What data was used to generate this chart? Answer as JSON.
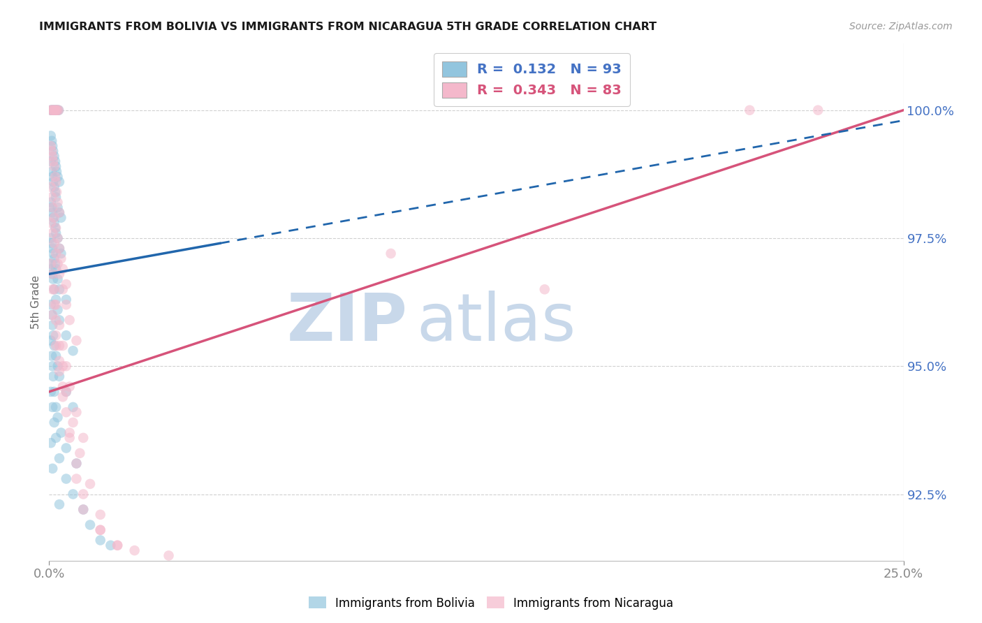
{
  "title": "IMMIGRANTS FROM BOLIVIA VS IMMIGRANTS FROM NICARAGUA 5TH GRADE CORRELATION CHART",
  "source": "Source: ZipAtlas.com",
  "ylabel": "5th Grade",
  "ytick_values": [
    100.0,
    97.5,
    95.0,
    92.5
  ],
  "ylim": [
    91.2,
    101.3
  ],
  "xlim": [
    0.0,
    25.0
  ],
  "bolivia_color": "#92c5de",
  "nicaragua_color": "#f4b8cb",
  "bolivia_line_color": "#2166ac",
  "nicaragua_line_color": "#d6537a",
  "bolivia_line": {
    "x0": 0.0,
    "y0": 96.8,
    "x1": 25.0,
    "y1": 99.8
  },
  "nicaragua_line": {
    "x0": 0.0,
    "y0": 94.5,
    "x1": 25.0,
    "y1": 100.0
  },
  "bolivia_solid_end": 5.0,
  "background_color": "#ffffff",
  "grid_color": "#d0d0d0",
  "watermark_zip": "ZIP",
  "watermark_atlas": "atlas",
  "watermark_zip_color": "#c8d8ea",
  "watermark_atlas_color": "#c8d8ea",
  "axis_label_color": "#4472c4",
  "legend_r_blue": "#4472c4",
  "legend_r_pink": "#d6537a",
  "bolivia_x": [
    0.05,
    0.08,
    0.1,
    0.12,
    0.15,
    0.18,
    0.2,
    0.22,
    0.25,
    0.28,
    0.05,
    0.08,
    0.1,
    0.12,
    0.15,
    0.18,
    0.2,
    0.22,
    0.25,
    0.3,
    0.05,
    0.08,
    0.1,
    0.12,
    0.15,
    0.18,
    0.2,
    0.25,
    0.3,
    0.35,
    0.05,
    0.08,
    0.1,
    0.12,
    0.15,
    0.18,
    0.2,
    0.25,
    0.3,
    0.35,
    0.05,
    0.08,
    0.1,
    0.12,
    0.15,
    0.18,
    0.2,
    0.25,
    0.3,
    0.5,
    0.05,
    0.08,
    0.1,
    0.12,
    0.15,
    0.2,
    0.25,
    0.3,
    0.5,
    0.7,
    0.05,
    0.08,
    0.1,
    0.12,
    0.15,
    0.2,
    0.25,
    0.3,
    0.5,
    0.7,
    0.05,
    0.08,
    0.1,
    0.12,
    0.15,
    0.2,
    0.25,
    0.35,
    0.5,
    0.8,
    0.05,
    0.1,
    0.15,
    0.2,
    0.3,
    0.5,
    0.7,
    1.0,
    1.2,
    1.5,
    0.05,
    0.1,
    0.3,
    1.8
  ],
  "bolivia_y": [
    100.0,
    100.0,
    100.0,
    100.0,
    100.0,
    100.0,
    100.0,
    100.0,
    100.0,
    100.0,
    99.5,
    99.4,
    99.3,
    99.2,
    99.1,
    99.0,
    98.9,
    98.8,
    98.7,
    98.6,
    99.0,
    98.8,
    98.7,
    98.6,
    98.5,
    98.4,
    98.3,
    98.1,
    98.0,
    97.9,
    98.2,
    98.1,
    98.0,
    97.9,
    97.8,
    97.7,
    97.6,
    97.5,
    97.3,
    97.2,
    97.5,
    97.4,
    97.3,
    97.2,
    97.1,
    97.0,
    96.9,
    96.7,
    96.5,
    96.3,
    97.0,
    96.9,
    96.8,
    96.7,
    96.5,
    96.3,
    96.1,
    95.9,
    95.6,
    95.3,
    96.2,
    96.0,
    95.8,
    95.6,
    95.4,
    95.2,
    95.0,
    94.8,
    94.5,
    94.2,
    95.5,
    95.2,
    95.0,
    94.8,
    94.5,
    94.2,
    94.0,
    93.7,
    93.4,
    93.1,
    94.5,
    94.2,
    93.9,
    93.6,
    93.2,
    92.8,
    92.5,
    92.2,
    91.9,
    91.6,
    93.5,
    93.0,
    92.3,
    91.5
  ],
  "nicaragua_x": [
    0.05,
    0.08,
    0.1,
    0.12,
    0.15,
    0.18,
    0.2,
    0.22,
    0.25,
    0.28,
    0.05,
    0.08,
    0.1,
    0.12,
    0.15,
    0.18,
    0.2,
    0.22,
    0.25,
    0.3,
    0.05,
    0.08,
    0.1,
    0.15,
    0.2,
    0.25,
    0.3,
    0.35,
    0.4,
    0.5,
    0.05,
    0.1,
    0.15,
    0.2,
    0.25,
    0.3,
    0.4,
    0.5,
    0.6,
    0.8,
    0.05,
    0.1,
    0.15,
    0.2,
    0.3,
    0.4,
    0.5,
    0.6,
    0.8,
    1.0,
    0.1,
    0.15,
    0.2,
    0.3,
    0.4,
    0.5,
    0.7,
    0.9,
    1.2,
    1.5,
    0.1,
    0.2,
    0.3,
    0.4,
    0.5,
    0.6,
    0.8,
    1.0,
    1.5,
    2.0,
    0.2,
    0.3,
    0.4,
    0.6,
    0.8,
    1.0,
    1.5,
    2.0,
    2.5,
    3.5,
    20.5,
    22.5,
    14.5,
    10.0
  ],
  "nicaragua_y": [
    100.0,
    100.0,
    100.0,
    100.0,
    100.0,
    100.0,
    100.0,
    100.0,
    100.0,
    100.0,
    99.3,
    99.2,
    99.1,
    99.0,
    98.9,
    98.7,
    98.6,
    98.4,
    98.2,
    98.0,
    98.5,
    98.3,
    98.1,
    97.9,
    97.7,
    97.5,
    97.3,
    97.1,
    96.9,
    96.6,
    97.8,
    97.6,
    97.4,
    97.2,
    97.0,
    96.8,
    96.5,
    96.2,
    95.9,
    95.5,
    97.0,
    96.8,
    96.5,
    96.2,
    95.8,
    95.4,
    95.0,
    94.6,
    94.1,
    93.6,
    96.5,
    96.2,
    95.9,
    95.4,
    95.0,
    94.5,
    93.9,
    93.3,
    92.7,
    92.1,
    96.0,
    95.6,
    95.1,
    94.6,
    94.1,
    93.6,
    92.8,
    92.2,
    91.8,
    91.5,
    95.4,
    94.9,
    94.4,
    93.7,
    93.1,
    92.5,
    91.8,
    91.5,
    91.4,
    91.3,
    100.0,
    100.0,
    96.5,
    97.2
  ]
}
